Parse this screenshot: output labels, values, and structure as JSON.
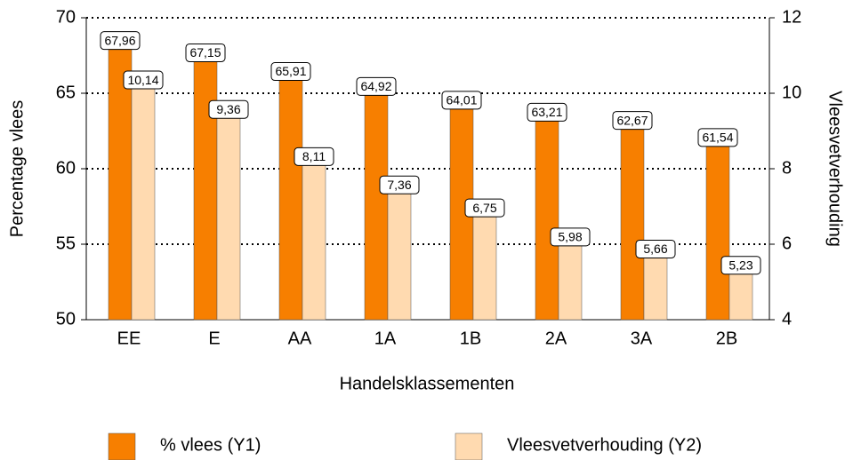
{
  "chart_data": {
    "type": "bar",
    "xlabel": "Handelsklassementen",
    "ylabel": "Percentage vlees",
    "y2label": "Vleesvetverhouding",
    "categories": [
      "EE",
      "E",
      "AA",
      "1A",
      "1B",
      "2A",
      "3A",
      "2B"
    ],
    "series": [
      {
        "name": "% vlees (Y1)",
        "color": "#f77f00",
        "values": [
          67.96,
          67.15,
          65.91,
          64.92,
          64.01,
          63.21,
          62.67,
          61.54
        ],
        "value_labels": [
          "67,96",
          "67,15",
          "65,91",
          "64,92",
          "64,01",
          "63,21",
          "62,67",
          "61,54"
        ]
      },
      {
        "name": "Vleesvetverhouding (Y2)",
        "color": "#ffdab0",
        "axis": "y2",
        "values": [
          10.14,
          9.36,
          8.11,
          7.36,
          6.75,
          5.98,
          5.66,
          5.23
        ],
        "value_labels": [
          "10,14",
          "9,36",
          "8,11",
          "7,36",
          "6,75",
          "5,98",
          "5,66",
          "5,23"
        ]
      }
    ],
    "ylim": [
      50,
      70
    ],
    "yticks": [
      50,
      55,
      60,
      65,
      70
    ],
    "y2lim": [
      4,
      12
    ],
    "y2ticks": [
      4,
      6,
      8,
      10,
      12
    ],
    "grid": true
  }
}
